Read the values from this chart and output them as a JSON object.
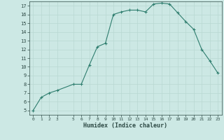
{
  "xlabel": "Humidex (Indice chaleur)",
  "x": [
    0,
    1,
    2,
    3,
    5,
    6,
    7,
    8,
    9,
    10,
    11,
    12,
    13,
    14,
    15,
    16,
    17,
    18,
    19,
    20,
    21,
    22,
    23
  ],
  "y": [
    5.0,
    6.5,
    7.0,
    7.3,
    8.0,
    8.0,
    10.2,
    12.3,
    12.7,
    16.0,
    16.3,
    16.5,
    16.5,
    16.3,
    17.2,
    17.3,
    17.2,
    16.2,
    15.2,
    14.3,
    12.0,
    10.7,
    9.3
  ],
  "line_color": "#2e7d6e",
  "bg_color": "#cce8e4",
  "grid_color": "#b8d8d2",
  "tick_label_color": "#2e4a45",
  "ylim_min": 4.5,
  "ylim_max": 17.5,
  "xlim_min": -0.5,
  "xlim_max": 23.5,
  "yticks": [
    5,
    6,
    7,
    8,
    9,
    10,
    11,
    12,
    13,
    14,
    15,
    16,
    17
  ],
  "xtick_positions": [
    0,
    1,
    2,
    3,
    5,
    6,
    7,
    8,
    9,
    10,
    11,
    12,
    13,
    14,
    15,
    16,
    17,
    18,
    19,
    20,
    21,
    22,
    23
  ],
  "xtick_labels": [
    "0",
    "1",
    "2",
    "3",
    "5",
    "6",
    "7",
    "8",
    "9",
    "10",
    "11",
    "12",
    "13",
    "14",
    "15",
    "16",
    "17",
    "18",
    "19",
    "20",
    "21",
    "22",
    "23"
  ]
}
